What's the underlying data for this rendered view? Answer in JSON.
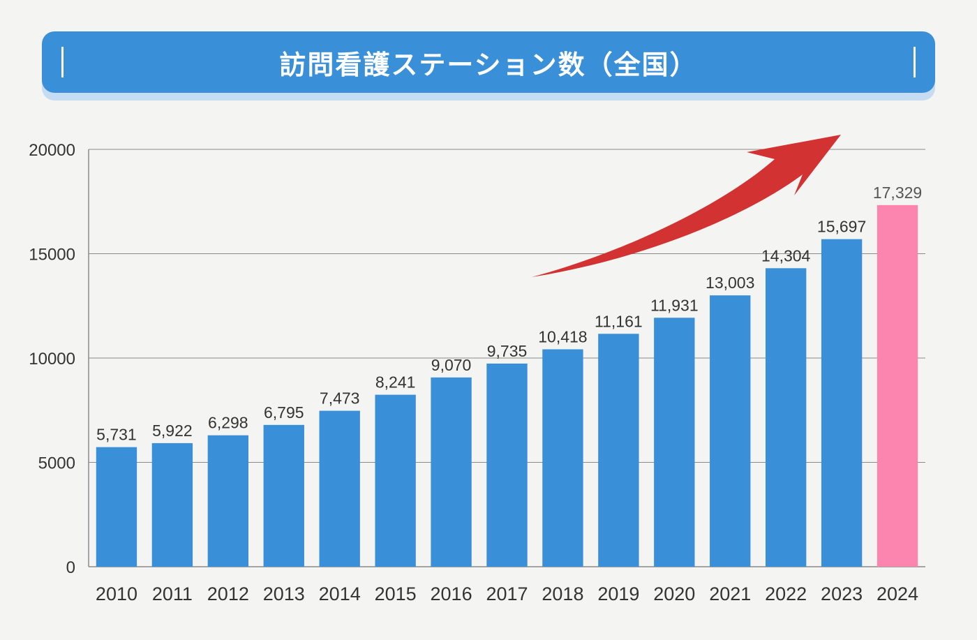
{
  "colors": {
    "background": "#f4f4f2",
    "banner": "#3a8fd9",
    "bar": "#3a8fd9",
    "highlight_bar": "#fc85b0",
    "arrow": "#d23232",
    "grid": "#8a8a8a",
    "text": "#333333"
  },
  "chart_data": {
    "type": "bar",
    "title": "訪問看護ステーション数（全国）",
    "xlabel": "",
    "ylabel": "",
    "categories": [
      "2010",
      "2011",
      "2012",
      "2013",
      "2014",
      "2015",
      "2016",
      "2017",
      "2018",
      "2019",
      "2020",
      "2021",
      "2022",
      "2023",
      "2024"
    ],
    "values": [
      5731,
      5922,
      6298,
      6795,
      7473,
      8241,
      9070,
      9735,
      10418,
      11161,
      11931,
      13003,
      14304,
      15697,
      17329
    ],
    "value_labels": [
      "5,731",
      "5,922",
      "6,298",
      "6,795",
      "7,473",
      "8,241",
      "9,070",
      "9,735",
      "10,418",
      "11,161",
      "11,931",
      "13,003",
      "14,304",
      "15,697",
      "17,329"
    ],
    "highlight_index": 14,
    "ylim": [
      0,
      20000
    ],
    "yticks": [
      0,
      5000,
      10000,
      15000,
      20000
    ],
    "ytick_labels": [
      "0",
      "5000",
      "10000",
      "15000",
      "20000"
    ],
    "grid": true,
    "legend": "none",
    "annotation": "upward-trend-arrow"
  }
}
